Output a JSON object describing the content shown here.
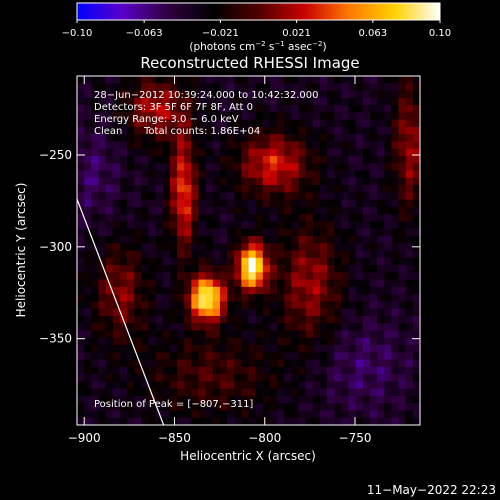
{
  "chart_data": {
    "type": "heatmap",
    "title": "Reconstructed RHESSI Image",
    "xlabel": "Heliocentric X (arcsec)",
    "ylabel": "Heliocentric Y (arcsec)",
    "xlim": [
      -904,
      -714
    ],
    "ylim": [
      -397,
      -207
    ],
    "x_ticks": [
      -900,
      -850,
      -800,
      -750
    ],
    "x_tick_labels": [
      "−900",
      "−850",
      "−800",
      "−750"
    ],
    "y_ticks": [
      -250,
      -300,
      -350
    ],
    "y_tick_labels": [
      "−250",
      "−300",
      "−350"
    ],
    "colorbar": {
      "range": [
        -0.1,
        0.1
      ],
      "ticks": [
        -0.1,
        -0.063,
        -0.021,
        0.021,
        0.063,
        0.1
      ],
      "tick_labels": [
        "−0.10",
        "−0.063",
        "−0.021",
        "0.021",
        "0.063",
        "0.10"
      ],
      "label_prefix": "(photons cm",
      "label_sup1": "−2",
      "label_mid1": " s",
      "label_sup2": "−1",
      "label_mid2": " asec",
      "label_sup3": "−2",
      "label_suffix": ")",
      "colors": [
        "#0000ff",
        "#5a00c8",
        "#300040",
        "#000000",
        "#500000",
        "#c80000",
        "#ff7800",
        "#ffd200",
        "#ffffff"
      ]
    },
    "annotations": {
      "time_range": "28−Jun−2012 10:39:24.000 to 10:42:32.000",
      "detectors": "Detectors: 3F 5F 6F 7F 8F, Att 0",
      "energy": "Energy Range: 3.0 − 6.0 keV",
      "method": "Clean",
      "counts": "Total counts: 1.86E+04",
      "peak": "Position of Peak = [−807,−311]"
    },
    "sources": [
      {
        "x": -807,
        "y": -311,
        "peak": 0.1
      },
      {
        "x": -832,
        "y": -328,
        "peak": 0.095
      }
    ],
    "limb_curve": [
      [
        -904,
        -274
      ],
      [
        -856,
        -397
      ]
    ],
    "footer_date": "11−May−2022 22:23"
  }
}
